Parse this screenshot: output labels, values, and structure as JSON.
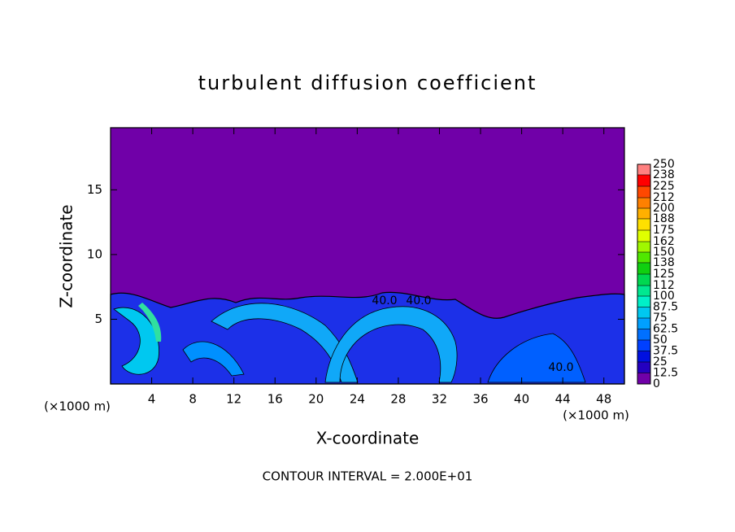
{
  "chart_data": {
    "type": "contour",
    "title": "turbulent diffusion coefficient",
    "x_label": "X-coordinate",
    "y_label": "Z-coordinate",
    "x_unit": "(×1000 m)",
    "y_unit": "(×1000 m)",
    "xlim": [
      0,
      50
    ],
    "xticks": [
      4,
      8,
      12,
      16,
      20,
      24,
      28,
      32,
      36,
      40,
      44,
      48
    ],
    "ylim": [
      0,
      19.8
    ],
    "yticks": [
      5,
      10,
      15
    ],
    "footnote": "CONTOUR INTERVAL = 2.000E+01",
    "contour_labels": [
      "40.0",
      "40.0",
      "40.0"
    ],
    "colorbar": {
      "ticks": [
        0,
        12.5,
        25,
        37.5,
        50,
        62.5,
        75,
        87.5,
        100,
        112,
        125,
        138,
        150,
        162,
        175,
        188,
        200,
        212,
        225,
        238,
        250
      ],
      "colors": [
        "#7000a8",
        "#2400c0",
        "#0010e0",
        "#0040ff",
        "#0070ff",
        "#00a0ff",
        "#00c8f0",
        "#00f0c8",
        "#00e890",
        "#00d850",
        "#10d010",
        "#50e800",
        "#a0f800",
        "#e0ff00",
        "#ffe000",
        "#ffb000",
        "#ff8000",
        "#ff4800",
        "#ff0000",
        "#ff8080"
      ]
    }
  }
}
